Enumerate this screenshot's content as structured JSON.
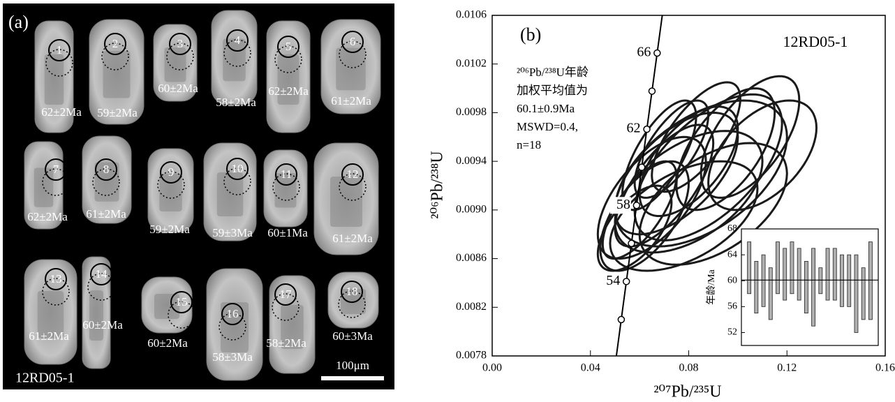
{
  "panel_a": {
    "label": "(a)",
    "sample": "12RD05-1",
    "scale_bar": "100μm",
    "grains": [
      {
        "spot": 1,
        "age": "62±2Ma"
      },
      {
        "spot": 2,
        "age": "59±2Ma"
      },
      {
        "spot": 3,
        "age": "60±2Ma"
      },
      {
        "spot": 4,
        "age": "58±2Ma"
      },
      {
        "spot": 5,
        "age": "62±2Ma"
      },
      {
        "spot": 6,
        "age": "61±2Ma"
      },
      {
        "spot": 7,
        "age": "62±2Ma"
      },
      {
        "spot": 8,
        "age": "61±2Ma"
      },
      {
        "spot": 9,
        "age": "59±2Ma"
      },
      {
        "spot": 10,
        "age": "59±3Ma"
      },
      {
        "spot": 11,
        "age": "60±1Ma"
      },
      {
        "spot": 12,
        "age": "61±2Ma"
      },
      {
        "spot": 13,
        "age": "61±2Ma"
      },
      {
        "spot": 14,
        "age": "60±2Ma"
      },
      {
        "spot": 15,
        "age": "60±2Ma"
      },
      {
        "spot": 16,
        "age": "58±3Ma"
      },
      {
        "spot": 17,
        "age": "58±2Ma"
      },
      {
        "spot": 18,
        "age": "60±3Ma"
      }
    ]
  },
  "chart_data": [
    {
      "type": "concordia",
      "label": "(b)",
      "sample": "12RD05-1",
      "annotation": [
        "²⁰⁶Pb/²³⁸U年龄",
        "加权平均值为",
        "60.1±0.9Ma",
        "MSWD=0.4,",
        "n=18"
      ],
      "xlabel": "²⁰⁷Pb/²³⁵U",
      "ylabel": "²⁰⁶Pb/²³⁸U",
      "xlim": [
        0,
        0.16
      ],
      "ylim": [
        0.0078,
        0.0106
      ],
      "xticks": [
        {
          "value": 0,
          "label": "0.00"
        },
        0.04,
        0.08,
        0.12,
        0.16
      ],
      "yticks": [
        0.0078,
        0.0082,
        0.0086,
        {
          "value": 0.009,
          "label": "0.0090"
        },
        0.0094,
        0.0098,
        0.0102,
        0.0106
      ],
      "concordia": {
        "x": [
          0.05254,
          0.05462,
          0.0567,
          0.05878,
          0.06087,
          0.06296,
          0.06506,
          0.06716
        ],
        "y": [
          0.008099,
          0.008412,
          0.008725,
          0.009038,
          0.009351,
          0.009664,
          0.009977,
          0.01029
        ],
        "labels": [
          null,
          54,
          null,
          58,
          null,
          62,
          null,
          66
        ]
      },
      "ellipses": {
        "x": [
          0.105,
          0.11,
          0.095,
          0.088,
          0.08,
          0.075,
          0.07,
          0.073,
          0.068,
          0.065,
          0.08,
          0.085,
          0.062,
          0.06,
          0.078,
          0.09,
          0.058,
          0.083
        ],
        "y": [
          0.0096,
          0.00945,
          0.0095,
          0.00935,
          0.0094,
          0.0093,
          0.0092,
          0.0095,
          0.00945,
          0.0091,
          0.00915,
          0.0093,
          0.00895,
          0.009,
          0.00895,
          0.00905,
          0.00885,
          0.0096
        ],
        "x_err": [
          0.02,
          0.022,
          0.02,
          0.03,
          0.02,
          0.025,
          0.02,
          0.015,
          0.015,
          0.022,
          0.03,
          0.035,
          0.018,
          0.015,
          0.03,
          0.03,
          0.015,
          0.018
        ],
        "y_err": [
          0.0005,
          0.00045,
          0.0005,
          0.0006,
          0.00045,
          0.0005,
          0.0005,
          0.0004,
          0.00045,
          0.0005,
          0.0005,
          0.0006,
          0.00045,
          0.0004,
          0.00045,
          0.0005,
          0.00035,
          0.00045
        ],
        "rho": [
          0.6,
          0.5,
          0.6,
          0.6,
          0.6,
          0.6,
          0.7,
          0.7,
          0.7,
          0.6,
          0.5,
          0.5,
          0.6,
          0.7,
          0.5,
          0.5,
          0.6,
          0.7
        ]
      }
    },
    {
      "type": "range_bar",
      "ylabel": "年龄/Ma",
      "ylim": [
        50,
        68
      ],
      "yticks": [
        52,
        56,
        60,
        64,
        68
      ],
      "values": [
        62,
        59,
        60,
        58,
        62,
        61,
        62,
        61,
        59,
        59,
        60,
        61,
        61,
        60,
        60,
        58,
        58,
        60
      ],
      "errors": [
        4,
        4,
        4,
        4,
        4,
        4,
        4,
        4,
        4,
        6,
        2,
        4,
        4,
        4,
        4,
        6,
        4,
        6
      ],
      "reference_line": 60.1,
      "color": "#b0b0b0"
    }
  ]
}
